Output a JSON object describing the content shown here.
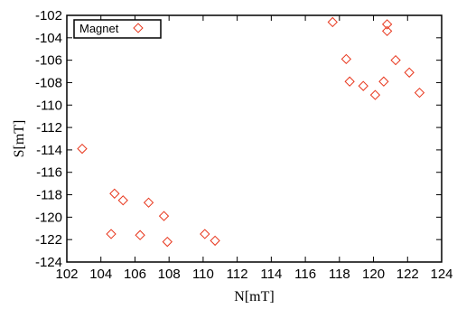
{
  "chart_data": {
    "type": "scatter",
    "title": "",
    "xlabel": "N[mT]",
    "ylabel": "S[mT]",
    "xlim": [
      102,
      124
    ],
    "ylim": [
      -124,
      -102
    ],
    "xticks": [
      102,
      104,
      106,
      108,
      110,
      112,
      114,
      116,
      118,
      120,
      122,
      124
    ],
    "yticks": [
      -124,
      -122,
      -120,
      -118,
      -116,
      -114,
      -112,
      -110,
      -108,
      -106,
      -104,
      -102
    ],
    "grid": false,
    "legend_position": "top-left",
    "series": [
      {
        "name": "Magnet",
        "marker": "diamond",
        "color": "#e8361c",
        "points": [
          [
            102.9,
            -113.9
          ],
          [
            104.6,
            -121.5
          ],
          [
            104.8,
            -117.9
          ],
          [
            105.3,
            -118.5
          ],
          [
            106.3,
            -121.6
          ],
          [
            106.8,
            -118.7
          ],
          [
            107.7,
            -119.9
          ],
          [
            107.9,
            -122.2
          ],
          [
            110.1,
            -121.5
          ],
          [
            110.7,
            -122.1
          ],
          [
            117.6,
            -102.6
          ],
          [
            118.4,
            -105.9
          ],
          [
            118.6,
            -107.9
          ],
          [
            119.4,
            -108.3
          ],
          [
            120.1,
            -109.1
          ],
          [
            120.6,
            -107.9
          ],
          [
            120.8,
            -102.8
          ],
          [
            120.8,
            -103.4
          ],
          [
            121.3,
            -106.0
          ],
          [
            122.1,
            -107.1
          ],
          [
            122.7,
            -108.9
          ]
        ]
      }
    ]
  }
}
